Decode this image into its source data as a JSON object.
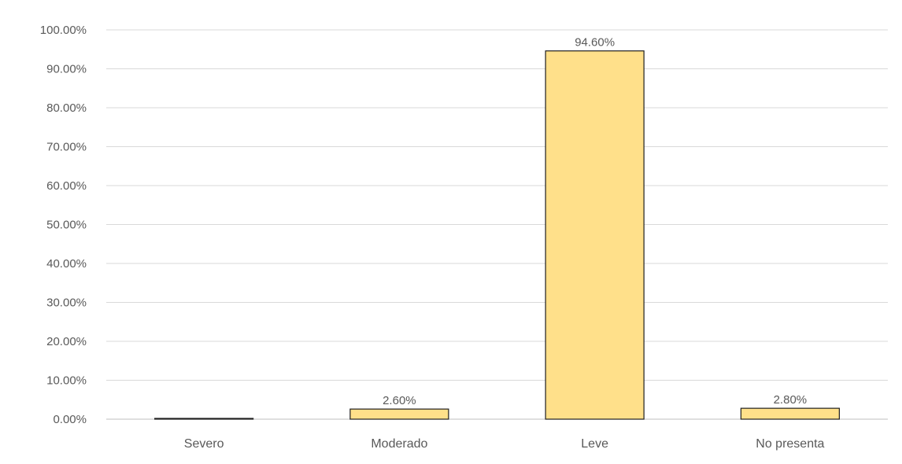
{
  "chart_data": {
    "type": "bar",
    "title": "",
    "xlabel": "",
    "ylabel": "",
    "categories": [
      "Severo",
      "Moderado",
      "Leve",
      "No presenta"
    ],
    "values": [
      0.0,
      2.6,
      94.6,
      2.8
    ],
    "data_labels": [
      "",
      "2.60%",
      "94.60%",
      "2.80%"
    ],
    "ylim": [
      0,
      100
    ],
    "yticks": [
      0,
      10,
      20,
      30,
      40,
      50,
      60,
      70,
      80,
      90,
      100
    ],
    "ytick_labels": [
      "0.00%",
      "10.00%",
      "20.00%",
      "30.00%",
      "40.00%",
      "50.00%",
      "60.00%",
      "70.00%",
      "80.00%",
      "90.00%",
      "100.00%"
    ],
    "grid": true,
    "legend": "none",
    "colors": {
      "bar_fill": "#ffe08a",
      "bar_stroke": "#1f1f1f",
      "grid": "#d9d9d9",
      "text": "#595959"
    }
  }
}
